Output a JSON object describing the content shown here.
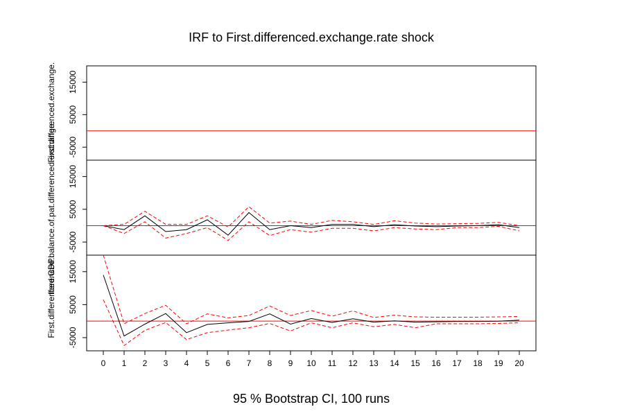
{
  "chart_data": {
    "type": "line",
    "title": "IRF to First.differenced.exchange.rate shock",
    "xlabel": "95 % Bootstrap CI,  100 runs",
    "x": [
      0,
      1,
      2,
      3,
      4,
      5,
      6,
      7,
      8,
      9,
      10,
      11,
      12,
      13,
      14,
      15,
      16,
      17,
      18,
      19,
      20
    ],
    "xlim": [
      -0.8,
      20.8
    ],
    "ytick_values": [
      -5000,
      5000,
      15000
    ],
    "colors": {
      "irf": "#000000",
      "ci": "#ff0000",
      "zero": "#ff0000"
    },
    "panels": [
      {
        "ylabel": "First.differenced.exchange.",
        "ylim": [
          -9000,
          20000
        ],
        "zero_line": 0,
        "series": [
          {
            "values": [
              null,
              null,
              null,
              null,
              null,
              null,
              null,
              null,
              null,
              null,
              null,
              null,
              null,
              null,
              null,
              null,
              null,
              null,
              null,
              null,
              null
            ]
          },
          {
            "values": [
              null,
              null,
              null,
              null,
              null,
              null,
              null,
              null,
              null,
              null,
              null,
              null,
              null,
              null,
              null,
              null,
              null,
              null,
              null,
              null,
              null
            ]
          },
          {
            "values": [
              null,
              null,
              null,
              null,
              null,
              null,
              null,
              null,
              null,
              null,
              null,
              null,
              null,
              null,
              null,
              null,
              null,
              null,
              null,
              null,
              null
            ]
          }
        ]
      },
      {
        "ylabel": "fferenced.balance.of.pat.differenced.exchange.",
        "ylim": [
          -9000,
          20000
        ],
        "zero_line": 0,
        "series": [
          {
            "values": [
              0,
              -1200,
              3000,
              -1800,
              -1200,
              1800,
              -2900,
              4000,
              -1200,
              0,
              -600,
              400,
              400,
              -300,
              300,
              -100,
              -300,
              -100,
              0,
              300,
              -600
            ]
          },
          {
            "values": [
              0,
              -2400,
              1200,
              -3800,
              -2400,
              -600,
              -4500,
              1200,
              -3000,
              -1200,
              -2000,
              -800,
              -800,
              -1600,
              -600,
              -1000,
              -1200,
              -600,
              -600,
              -200,
              -1600
            ]
          },
          {
            "values": [
              0,
              400,
              4400,
              400,
              400,
              3000,
              -400,
              5800,
              800,
              1400,
              400,
              1600,
              1200,
              400,
              1500,
              800,
              500,
              600,
              700,
              1000,
              0
            ]
          }
        ]
      },
      {
        "ylabel": "First.differenced.GDP",
        "ylim": [
          -9000,
          20000
        ],
        "zero_line": 0,
        "series": [
          {
            "values": [
              14000,
              -4500,
              -900,
              2300,
              -3500,
              -1000,
              -500,
              -100,
              2200,
              -900,
              800,
              -400,
              700,
              -300,
              100,
              -300,
              -200,
              -100,
              -100,
              0,
              300
            ]
          },
          {
            "values": [
              6500,
              -7400,
              -2800,
              -400,
              -5600,
              -3500,
              -2700,
              -2000,
              -700,
              -3000,
              -500,
              -2000,
              -500,
              -1700,
              -1000,
              -2000,
              -800,
              -800,
              -800,
              -700,
              -500
            ]
          },
          {
            "values": [
              20000,
              -800,
              2300,
              4800,
              -800,
              2200,
              1000,
              1700,
              4600,
              1700,
              3200,
              1500,
              3100,
              1100,
              1800,
              1300,
              1200,
              1200,
              1200,
              1300,
              1400
            ]
          }
        ]
      }
    ]
  }
}
